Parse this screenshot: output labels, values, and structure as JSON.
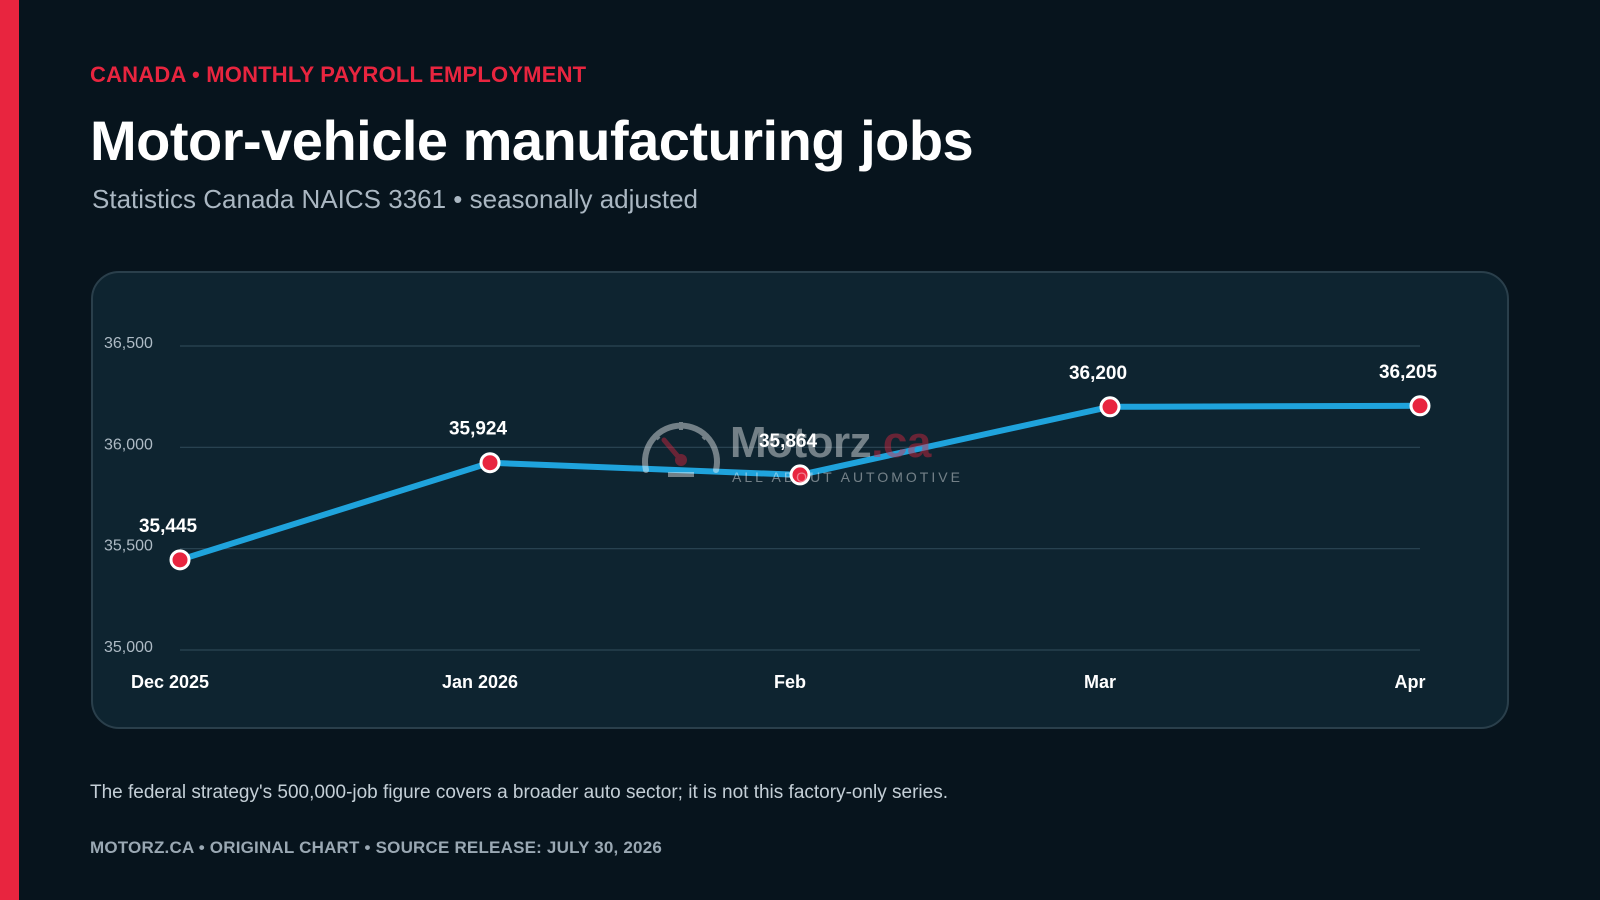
{
  "header": {
    "kicker": "CANADA • MONTHLY PAYROLL EMPLOYMENT",
    "title": "Motor-vehicle manufacturing jobs",
    "subtitle": "Statistics Canada NAICS 3361 • seasonally adjusted"
  },
  "watermark": {
    "brand": "Motorz",
    "tld": ".ca",
    "tagline": "ALL ABOUT AUTOMOTIVE",
    "icon": "speedometer-icon"
  },
  "note": "The federal strategy's 500,000-job figure covers a broader auto sector; it is not this factory-only series.",
  "footer": "MOTORZ.CA • ORIGINAL CHART • SOURCE RELEASE: JULY 30, 2026",
  "colors": {
    "background": "#07141d",
    "panel": "#0e2430",
    "accent": "#e8253f",
    "line": "#1fa3dc",
    "point": "#e8253f"
  },
  "chart_data": {
    "type": "line",
    "title": "Motor-vehicle manufacturing jobs",
    "xlabel": "",
    "ylabel": "",
    "categories": [
      "Dec 2025",
      "Jan 2026",
      "Feb",
      "Mar",
      "Apr"
    ],
    "values": [
      35445,
      35924,
      35864,
      36200,
      36205
    ],
    "data_labels": [
      "35,445",
      "35,924",
      "35,864",
      "36,200",
      "36,205"
    ],
    "ylim": [
      35000,
      36500
    ],
    "yticks": [
      35000,
      35500,
      36000,
      36500
    ],
    "ytick_labels": [
      "35,000",
      "35,500",
      "36,000",
      "36,500"
    ],
    "grid": true,
    "legend": "none"
  }
}
